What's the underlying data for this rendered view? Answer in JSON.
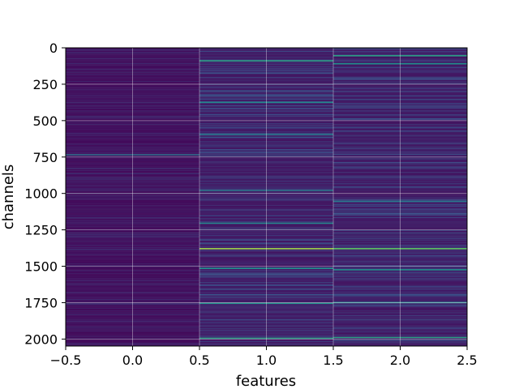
{
  "chart_data": {
    "type": "heatmap",
    "title": "",
    "xlabel": "features",
    "ylabel": "channels",
    "colormap": "viridis",
    "xlim": [
      -0.5,
      2.5
    ],
    "ylim": [
      2048,
      0
    ],
    "x_ticks": [
      -0.5,
      0.0,
      0.5,
      1.0,
      1.5,
      2.0,
      2.5
    ],
    "x_tick_labels": [
      "−0.5",
      "0.0",
      "0.5",
      "1.0",
      "1.5",
      "2.0",
      "2.5"
    ],
    "y_ticks": [
      0,
      250,
      500,
      750,
      1000,
      1250,
      1500,
      1750,
      2000
    ],
    "y_tick_labels": [
      "0",
      "250",
      "500",
      "750",
      "1000",
      "1250",
      "1500",
      "1750",
      "2000"
    ],
    "grid": true,
    "columns": [
      0,
      1,
      2
    ],
    "rows": 2048,
    "bright_rows": [
      {
        "column": 1,
        "channel": 85,
        "level": 0.55
      },
      {
        "column": 2,
        "channel": 50,
        "level": 0.55
      },
      {
        "column": 2,
        "channel": 105,
        "level": 0.5
      },
      {
        "column": 1,
        "channel": 370,
        "level": 0.45
      },
      {
        "column": 1,
        "channel": 590,
        "level": 0.4
      },
      {
        "column": 0,
        "channel": 730,
        "level": 0.35
      },
      {
        "column": 1,
        "channel": 975,
        "level": 0.4
      },
      {
        "column": 2,
        "channel": 1050,
        "level": 0.4
      },
      {
        "column": 1,
        "channel": 1200,
        "level": 0.45
      },
      {
        "column": 1,
        "channel": 1375,
        "level": 0.85
      },
      {
        "column": 2,
        "channel": 1375,
        "level": 0.75
      },
      {
        "column": 1,
        "channel": 1510,
        "level": 0.5
      },
      {
        "column": 2,
        "channel": 1520,
        "level": 0.5
      },
      {
        "column": 1,
        "channel": 1750,
        "level": 0.5
      },
      {
        "column": 2,
        "channel": 1745,
        "level": 0.45
      },
      {
        "column": 1,
        "channel": 1990,
        "level": 0.55
      },
      {
        "column": 2,
        "channel": 1985,
        "level": 0.55
      }
    ]
  }
}
